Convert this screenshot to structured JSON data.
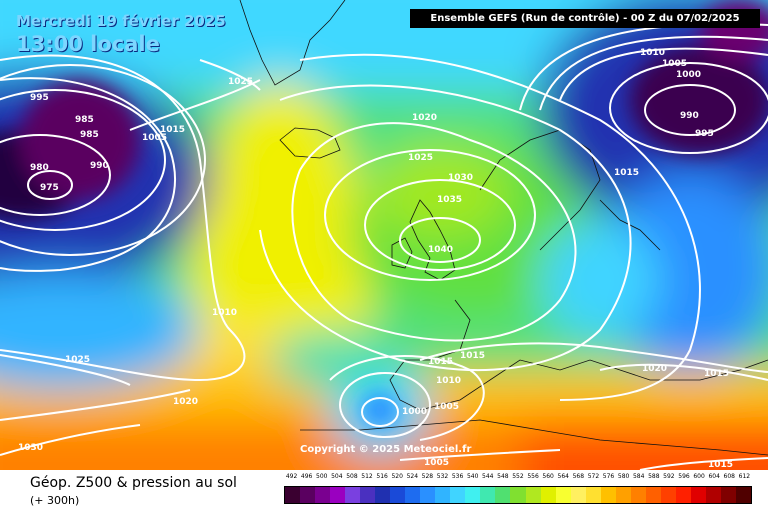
{
  "header": {
    "date_line": "Mercredi 19 février 2025",
    "time_line": "13:00 locale",
    "run_info": "Ensemble GEFS  (Run de contrôle)  -  00 Z du 07/02/2025"
  },
  "map": {
    "isobar_labels": [
      "995",
      "985",
      "985",
      "980",
      "975",
      "990",
      "1015",
      "1025",
      "1020",
      "1025",
      "1030",
      "1035",
      "1040",
      "1010",
      "1025",
      "1020",
      "1030",
      "1015",
      "1010",
      "1000",
      "1005",
      "1015",
      "1005",
      "1010",
      "1005",
      "1000",
      "990",
      "995",
      "1015",
      "1020",
      "1015",
      "1015",
      "1005"
    ],
    "copyright": "Copyright © 2025 Meteociel.fr"
  },
  "legend": {
    "title": "Géop. Z500 & pression au sol",
    "subtitle": "(+ 300h)",
    "scale_values": [
      "492",
      "496",
      "500",
      "504",
      "508",
      "512",
      "516",
      "520",
      "524",
      "528",
      "532",
      "536",
      "540",
      "544",
      "548",
      "552",
      "556",
      "560",
      "564",
      "568",
      "572",
      "576",
      "580",
      "584",
      "588",
      "592",
      "596",
      "600",
      "604",
      "608",
      "612"
    ],
    "scale_colors": [
      "#3a0030",
      "#5a0060",
      "#7a0090",
      "#9a00c0",
      "#7a40e0",
      "#4a30c0",
      "#2030b0",
      "#1a4ad8",
      "#1e6cf0",
      "#2a90ff",
      "#30b4ff",
      "#40d4ff",
      "#40f0f0",
      "#40e8b0",
      "#50e070",
      "#80e030",
      "#b0e820",
      "#e0f000",
      "#f8ff30",
      "#fff060",
      "#ffe030",
      "#ffc000",
      "#ffa000",
      "#ff8000",
      "#ff6000",
      "#ff4000",
      "#ff2000",
      "#e00000",
      "#b00000",
      "#800000",
      "#500000"
    ]
  }
}
